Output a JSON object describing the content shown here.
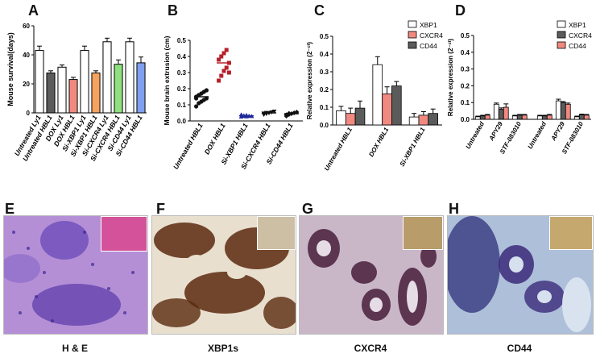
{
  "panels": {
    "A": "A",
    "B": "B",
    "C": "C",
    "D": "D",
    "E": "E",
    "F": "F",
    "G": "G",
    "H": "H"
  },
  "captions": {
    "E": "H & E",
    "F": "XBP1s",
    "G": "CXCR4",
    "H": "CD44"
  },
  "colors": {
    "white_bar": "#ffffff",
    "dark_gray": "#5b5b5b",
    "salmon": "#f08a80",
    "orange": "#f6a35f",
    "green": "#8fe07f",
    "blue": "#7f9ff0",
    "crimson": "#b5202a",
    "navy": "#1f2a9c"
  },
  "chart_data": [
    {
      "id": "A",
      "type": "bar",
      "ylabel": "Mouse survival(days)",
      "ylim": [
        0,
        60
      ],
      "yticks": [
        "0",
        "20",
        "40",
        "60"
      ],
      "categories": [
        "Untreated Ly1",
        "Untreated HBL1",
        "DOX Ly1",
        "DOX HBL1",
        "Si-XBP1 Ly1",
        "Si-XBP1 HBL1",
        "Si-CXCR4 Ly1",
        "Si-CXCR4 HBL1",
        "Si-CD44 Ly1",
        "Si-CD44 HBL1"
      ],
      "values": [
        43,
        27.5,
        31.5,
        23,
        43,
        27.5,
        49,
        33.5,
        49,
        34.5
      ],
      "errors": [
        3,
        1.5,
        1.5,
        1.5,
        3,
        1.5,
        2.5,
        3,
        2.5,
        4
      ],
      "bar_colors": [
        "#ffffff",
        "#5b5b5b",
        "#ffffff",
        "#f08a80",
        "#ffffff",
        "#f6a35f",
        "#ffffff",
        "#8fe07f",
        "#ffffff",
        "#7f9ff0"
      ]
    },
    {
      "id": "B",
      "type": "scatter",
      "ylabel": "Mouse brain extrusion  (cm)",
      "ylim": [
        0,
        0.5
      ],
      "yticks": [
        "0.0",
        "0.1",
        "0.2",
        "0.3",
        "0.4",
        "0.5"
      ],
      "categories": [
        "Untreated HBL1",
        "DOX HBL1",
        "Si-XBP1 HBL1",
        "Si-CXCR4 HBL1",
        "Si-CD44 HBL1"
      ],
      "means": [
        0.15,
        0.36,
        0.032,
        0.05,
        0.045
      ],
      "points": [
        [
          0.09,
          0.11,
          0.12,
          0.13,
          0.14,
          0.15,
          0.16,
          0.17,
          0.18,
          0.19,
          0.14,
          0.16
        ],
        [
          0.25,
          0.28,
          0.31,
          0.33,
          0.36,
          0.38,
          0.4,
          0.42,
          0.44,
          0.3
        ],
        [
          0.025,
          0.03,
          0.035,
          0.03,
          0.028,
          0.038,
          0.032,
          0.026
        ],
        [
          0.04,
          0.045,
          0.05,
          0.055,
          0.06,
          0.048,
          0.052
        ],
        [
          0.03,
          0.04,
          0.045,
          0.05,
          0.055,
          0.038,
          0.047
        ]
      ],
      "marker_colors": [
        "#111111",
        "#b5202a",
        "#1f2a9c",
        "#111111",
        "#111111"
      ],
      "markers": [
        "circle",
        "square",
        "triangle-up",
        "triangle-down",
        "diamond"
      ]
    },
    {
      "id": "C",
      "type": "bar",
      "ylabel": "Relative expression (2⁻ᶜᵗ)",
      "ylim": [
        0,
        0.5
      ],
      "yticks": [
        "0.0",
        "0.1",
        "0.2",
        "0.3",
        "0.4",
        "0.5"
      ],
      "categories": [
        "Untreated HBL1",
        "DOX HBL1",
        "Si-XBP1 HBL1"
      ],
      "series": [
        {
          "name": "XBP1",
          "values": [
            0.08,
            0.34,
            0.045
          ],
          "errors": [
            0.025,
            0.045,
            0.02
          ],
          "color": "#ffffff"
        },
        {
          "name": "CXCR4",
          "values": [
            0.065,
            0.175,
            0.055
          ],
          "errors": [
            0.03,
            0.04,
            0.02
          ],
          "color": "#f08a80"
        },
        {
          "name": "CD44",
          "values": [
            0.095,
            0.22,
            0.065
          ],
          "errors": [
            0.04,
            0.025,
            0.025
          ],
          "color": "#5b5b5b"
        }
      ],
      "legend": "top-right"
    },
    {
      "id": "D",
      "type": "bar",
      "ylabel": "Relative expression (2⁻ᶜᵗ)",
      "ylim": [
        0,
        0.5
      ],
      "yticks": [
        "0.0",
        "0.1",
        "0.2",
        "0.3",
        "0.4",
        "0.5"
      ],
      "categories": [
        "Untreated",
        "APY29",
        "STF-083010",
        "Untreated",
        "APY29",
        "STF-083010"
      ],
      "series": [
        {
          "name": "XBP1",
          "values": [
            0.015,
            0.09,
            0.02,
            0.02,
            0.11,
            0.015
          ],
          "errors": [
            0.004,
            0.007,
            0.004,
            0.004,
            0.01,
            0.004
          ],
          "color": "#ffffff"
        },
        {
          "name": "CXCR4",
          "values": [
            0.02,
            0.06,
            0.025,
            0.02,
            0.1,
            0.027
          ],
          "errors": [
            0.004,
            0.008,
            0.004,
            0.004,
            0.006,
            0.004
          ],
          "color": "#5b5b5b"
        },
        {
          "name": "CD44",
          "values": [
            0.025,
            0.072,
            0.025,
            0.025,
            0.09,
            0.025
          ],
          "errors": [
            0.004,
            0.02,
            0.004,
            0.004,
            0.007,
            0.004
          ],
          "color": "#f08a80"
        }
      ],
      "legend": "top-right"
    }
  ]
}
